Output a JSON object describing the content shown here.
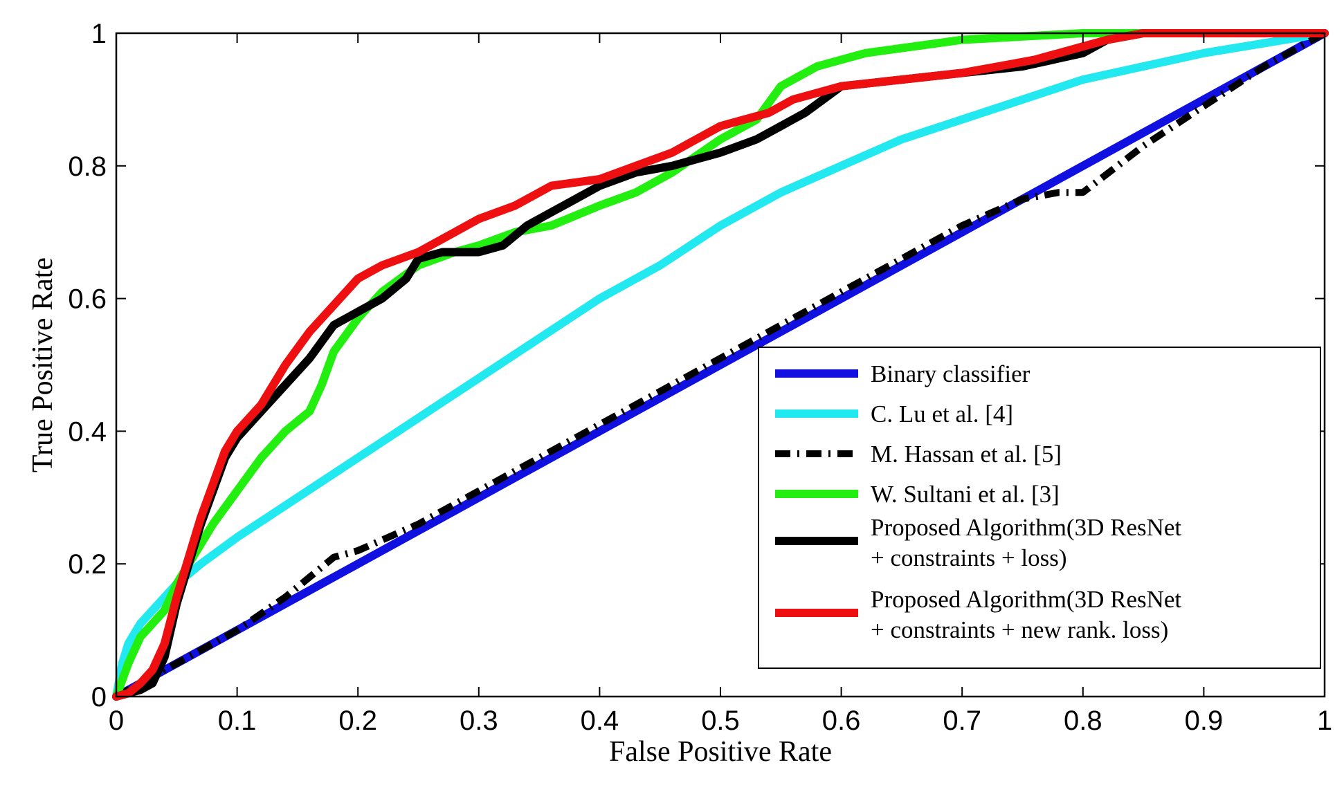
{
  "chart_data": {
    "type": "line",
    "title": "",
    "xlabel": "False Positive Rate",
    "ylabel": "True Positive Rate",
    "xlim": [
      0,
      1
    ],
    "ylim": [
      0,
      1
    ],
    "grid": false,
    "legend_position": "bottom-right",
    "x_ticks": [
      "0",
      "0.1",
      "0.2",
      "0.3",
      "0.4",
      "0.5",
      "0.6",
      "0.7",
      "0.8",
      "0.9",
      "1"
    ],
    "y_ticks": [
      "0",
      "0.2",
      "0.4",
      "0.6",
      "0.8",
      "1"
    ],
    "series": [
      {
        "name": "Binary classifier",
        "legend_lines": [
          "Binary classifier"
        ],
        "color": "#1010e0",
        "style": "solid",
        "x": [
          0,
          1
        ],
        "y": [
          0,
          1
        ]
      },
      {
        "name": "C. Lu et al. [4]",
        "legend_lines": [
          "C. Lu et al. [4]"
        ],
        "color": "#22e8f0",
        "style": "solid",
        "x": [
          0,
          0.005,
          0.01,
          0.02,
          0.03,
          0.05,
          0.07,
          0.1,
          0.15,
          0.2,
          0.25,
          0.3,
          0.35,
          0.4,
          0.45,
          0.5,
          0.55,
          0.6,
          0.65,
          0.7,
          0.75,
          0.8,
          0.85,
          0.9,
          0.95,
          1.0
        ],
        "y": [
          0,
          0.05,
          0.08,
          0.11,
          0.13,
          0.17,
          0.2,
          0.24,
          0.3,
          0.36,
          0.42,
          0.48,
          0.54,
          0.6,
          0.65,
          0.71,
          0.76,
          0.8,
          0.84,
          0.87,
          0.9,
          0.93,
          0.95,
          0.97,
          0.985,
          1.0
        ]
      },
      {
        "name": "M. Hassan et al. [5]",
        "legend_lines": [
          "M. Hassan et al. [5]"
        ],
        "color": "#000000",
        "style": "dashdot",
        "x": [
          0,
          0.02,
          0.04,
          0.06,
          0.1,
          0.14,
          0.18,
          0.2,
          0.25,
          0.3,
          0.35,
          0.4,
          0.45,
          0.5,
          0.55,
          0.6,
          0.65,
          0.7,
          0.75,
          0.78,
          0.8,
          0.85,
          0.9,
          0.95,
          1.0
        ],
        "y": [
          0,
          0.02,
          0.04,
          0.06,
          0.1,
          0.15,
          0.21,
          0.22,
          0.26,
          0.31,
          0.36,
          0.41,
          0.46,
          0.51,
          0.56,
          0.61,
          0.66,
          0.71,
          0.75,
          0.76,
          0.76,
          0.83,
          0.89,
          0.95,
          1.0
        ]
      },
      {
        "name": "W. Sultani et al. [3]",
        "legend_lines": [
          "W. Sultani et al. [3]"
        ],
        "color": "#22ee10",
        "style": "solid",
        "x": [
          0,
          0.01,
          0.02,
          0.03,
          0.04,
          0.05,
          0.06,
          0.08,
          0.1,
          0.12,
          0.14,
          0.16,
          0.17,
          0.18,
          0.2,
          0.22,
          0.25,
          0.28,
          0.3,
          0.33,
          0.36,
          0.4,
          0.43,
          0.46,
          0.5,
          0.53,
          0.55,
          0.58,
          0.62,
          0.66,
          0.7,
          0.75,
          0.8,
          0.85,
          0.9,
          1.0
        ],
        "y": [
          0,
          0.05,
          0.09,
          0.11,
          0.13,
          0.17,
          0.2,
          0.26,
          0.31,
          0.36,
          0.4,
          0.43,
          0.47,
          0.52,
          0.57,
          0.61,
          0.65,
          0.67,
          0.68,
          0.7,
          0.71,
          0.74,
          0.76,
          0.79,
          0.84,
          0.87,
          0.92,
          0.95,
          0.97,
          0.98,
          0.99,
          0.995,
          1.0,
          1.0,
          1.0,
          1.0
        ]
      },
      {
        "name": "Proposed Algorithm(3D ResNet + constraints + loss)",
        "legend_lines": [
          "Proposed Algorithm(3D ResNet",
          "+ constraints + loss)"
        ],
        "color": "#000000",
        "style": "solid",
        "x": [
          0,
          0.01,
          0.02,
          0.03,
          0.04,
          0.05,
          0.06,
          0.07,
          0.08,
          0.09,
          0.1,
          0.12,
          0.14,
          0.16,
          0.18,
          0.2,
          0.22,
          0.24,
          0.25,
          0.27,
          0.3,
          0.32,
          0.34,
          0.36,
          0.38,
          0.4,
          0.43,
          0.46,
          0.48,
          0.5,
          0.53,
          0.55,
          0.57,
          0.6,
          0.65,
          0.7,
          0.75,
          0.8,
          0.82,
          0.85,
          0.9,
          0.95,
          1.0
        ],
        "y": [
          0,
          0.005,
          0.01,
          0.02,
          0.06,
          0.14,
          0.2,
          0.26,
          0.31,
          0.36,
          0.39,
          0.43,
          0.47,
          0.51,
          0.56,
          0.58,
          0.6,
          0.63,
          0.66,
          0.67,
          0.67,
          0.68,
          0.71,
          0.73,
          0.75,
          0.77,
          0.79,
          0.8,
          0.81,
          0.82,
          0.84,
          0.86,
          0.88,
          0.92,
          0.93,
          0.94,
          0.95,
          0.97,
          0.99,
          1.0,
          1.0,
          1.0,
          1.0
        ]
      },
      {
        "name": "Proposed Algorithm(3D ResNet + constraints + new rank. loss)",
        "legend_lines": [
          "Proposed Algorithm(3D ResNet",
          "+ constraints + new rank. loss)"
        ],
        "color": "#ee1010",
        "style": "solid",
        "x": [
          0,
          0.01,
          0.02,
          0.03,
          0.04,
          0.05,
          0.06,
          0.07,
          0.08,
          0.09,
          0.1,
          0.12,
          0.14,
          0.16,
          0.18,
          0.2,
          0.22,
          0.25,
          0.28,
          0.3,
          0.33,
          0.36,
          0.4,
          0.43,
          0.46,
          0.48,
          0.5,
          0.52,
          0.54,
          0.56,
          0.6,
          0.65,
          0.7,
          0.73,
          0.76,
          0.8,
          0.82,
          0.85,
          0.9,
          0.95,
          1.0
        ],
        "y": [
          0,
          0.005,
          0.02,
          0.04,
          0.08,
          0.15,
          0.21,
          0.27,
          0.32,
          0.37,
          0.4,
          0.44,
          0.5,
          0.55,
          0.59,
          0.63,
          0.65,
          0.67,
          0.7,
          0.72,
          0.74,
          0.77,
          0.78,
          0.8,
          0.82,
          0.84,
          0.86,
          0.87,
          0.88,
          0.9,
          0.92,
          0.93,
          0.94,
          0.95,
          0.96,
          0.98,
          0.99,
          1.0,
          1.0,
          1.0,
          1.0
        ]
      }
    ]
  }
}
